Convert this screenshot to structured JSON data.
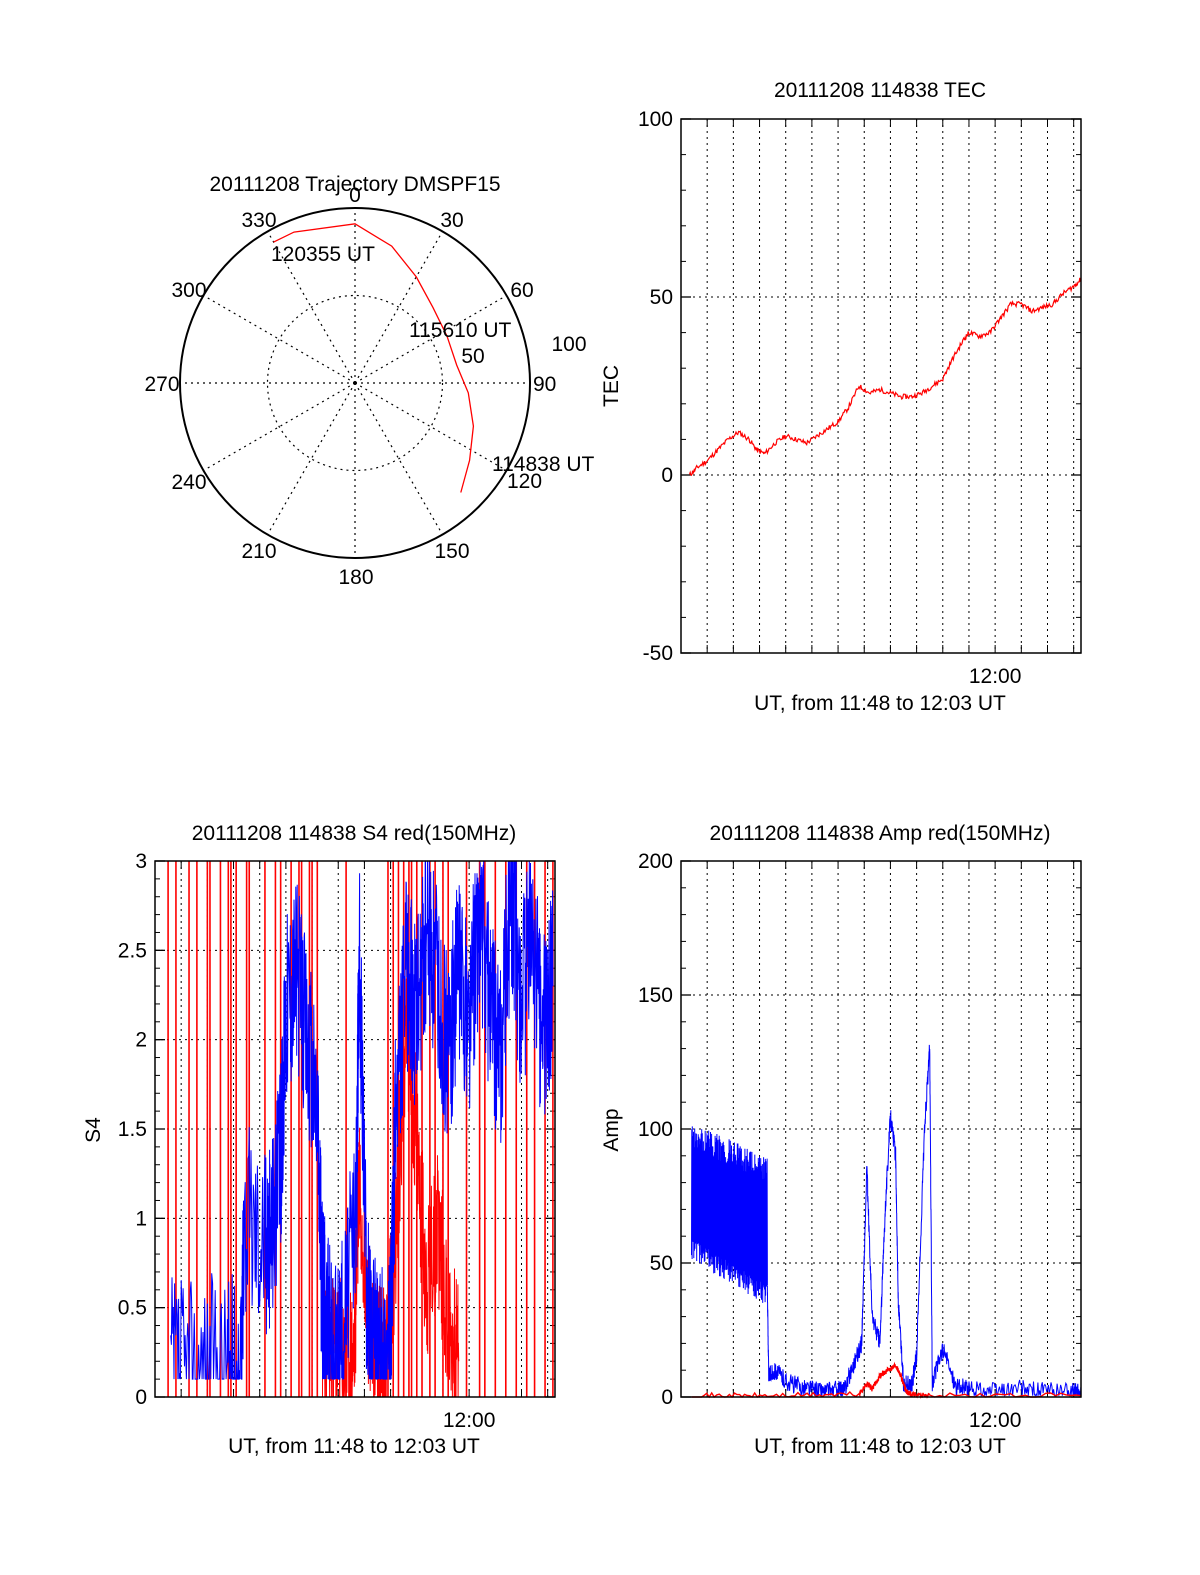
{
  "colors": {
    "background": "#ffffff",
    "axis": "#000000",
    "grid": "#000000",
    "red_series": "#ff0000",
    "blue_series": "#0000ff"
  },
  "chart_data": [
    {
      "id": "trajectory",
      "type": "polar",
      "title": "20111208 Trajectory DMSPF15",
      "azimuth_labels": [
        "0",
        "30",
        "60",
        "90",
        "120",
        "150",
        "180",
        "210",
        "240",
        "270",
        "300",
        "330"
      ],
      "radius_labels": [
        "50",
        "100"
      ],
      "radius_max": 100,
      "grid": true,
      "series": [
        {
          "color": "red",
          "points": [
            {
              "azimuth": 136,
              "zenith": 87
            },
            {
              "azimuth": 124,
              "zenith": 79
            },
            {
              "azimuth": 110,
              "zenith": 72
            },
            {
              "azimuth": 95,
              "zenith": 65
            },
            {
              "azimuth": 80,
              "zenith": 59
            },
            {
              "azimuth": 63,
              "zenith": 59
            },
            {
              "azimuth": 46,
              "zenith": 62
            },
            {
              "azimuth": 30,
              "zenith": 70
            },
            {
              "azimuth": 15,
              "zenith": 81
            },
            {
              "azimuth": 0,
              "zenith": 91
            },
            {
              "azimuth": 338,
              "zenith": 93
            },
            {
              "azimuth": 330,
              "zenith": 93
            }
          ]
        }
      ],
      "annotations": [
        {
          "text": "114838 UT"
        },
        {
          "text": "115610 UT"
        },
        {
          "text": "120355 UT"
        }
      ]
    },
    {
      "id": "tec",
      "type": "line",
      "title": "20111208 114838 TEC",
      "xlabel": "UT, from 11:48 to 12:03 UT",
      "ylabel": "TEC",
      "xlim_minutes": [
        0,
        15.28
      ],
      "ylim": [
        -50,
        100
      ],
      "x_tick_labels": [
        {
          "t": 12.0,
          "label": "12:00"
        }
      ],
      "y_ticks": [
        -50,
        0,
        50,
        100
      ],
      "grid": true,
      "series": [
        {
          "color": "red",
          "x": [
            0.33,
            0.6,
            1.0,
            1.4,
            1.8,
            2.2,
            2.6,
            2.9,
            3.2,
            3.6,
            4.0,
            4.4,
            4.8,
            5.2,
            5.6,
            6.0,
            6.4,
            6.8,
            7.2,
            7.6,
            8.0,
            8.4,
            8.8,
            9.2,
            9.6,
            10.0,
            10.4,
            10.8,
            11.0,
            11.4,
            11.8,
            12.2,
            12.6,
            13.0,
            13.4,
            13.8,
            14.2,
            14.6,
            15.0,
            15.28
          ],
          "y": [
            0,
            2,
            4,
            7,
            10,
            12,
            10,
            7,
            6,
            9,
            11,
            10,
            9,
            11,
            13,
            15,
            19,
            25,
            23,
            24,
            23,
            22,
            22,
            23,
            25,
            27,
            33,
            38,
            40,
            39,
            40,
            44,
            48,
            48,
            46,
            47,
            48,
            51,
            53,
            55
          ]
        }
      ]
    },
    {
      "id": "s4",
      "type": "line",
      "title": "20111208 114838 S4 red(150MHz)",
      "xlabel": "UT, from 11:48 to 12:03 UT",
      "ylabel": "S4",
      "xlim_minutes": [
        0,
        15.28
      ],
      "ylim": [
        0,
        3
      ],
      "x_tick_labels": [
        {
          "t": 12.0,
          "label": "12:00"
        }
      ],
      "y_ticks": [
        0,
        0.5,
        1,
        1.5,
        2,
        2.5,
        3
      ],
      "y_tick_labels": [
        "0",
        "0.5",
        "1",
        "1.5",
        "2",
        "2.5",
        "3"
      ],
      "grid": true,
      "series": [
        {
          "color": "blue",
          "x": [
            0.6,
            1.5,
            2.7,
            3.3,
            3.4,
            4.2,
            4.4,
            4.8,
            5.0,
            5.4,
            5.8,
            6.2,
            6.4,
            6.5,
            6.8,
            7.2,
            7.7,
            7.8,
            8.1,
            8.4,
            8.7,
            9.0,
            9.2,
            9.6,
            10.0,
            10.4,
            10.8,
            11.2,
            11.6,
            12.0,
            12.4,
            12.8,
            13.2,
            13.6,
            14.0,
            14.4,
            14.8,
            15.2
          ],
          "y": [
            0.14,
            0.14,
            0.15,
            0.16,
            1.0,
            0.9,
            0.9,
            1.3,
            2.2,
            2.4,
            2.0,
            1.6,
            0.5,
            0.55,
            0.2,
            0.4,
            1.1,
            2.6,
            0.5,
            0.25,
            0.2,
            0.3,
            1.6,
            2.4,
            2.1,
            2.6,
            2.3,
            1.9,
            2.4,
            2.1,
            2.7,
            2.2,
            1.9,
            2.8,
            2.2,
            2.6,
            2.0,
            2.3
          ]
        },
        {
          "color": "red",
          "x": [
            6.4,
            6.8,
            7.2,
            7.6,
            7.8,
            8.2,
            8.5,
            8.8,
            9.2,
            9.6,
            10.0,
            10.4,
            10.8,
            11.2,
            11.6
          ],
          "y": [
            0.3,
            0.25,
            0.22,
            0.2,
            1.3,
            0.4,
            0.22,
            0.18,
            0.9,
            2.2,
            1.4,
            0.6,
            1.0,
            0.4,
            0.2
          ]
        }
      ],
      "red_spike_times": [
        0.5,
        0.8,
        1.3,
        1.6,
        2.0,
        2.1,
        2.5,
        2.8,
        2.9,
        3.1,
        3.5,
        3.6,
        4.2,
        4.6,
        4.8,
        5.2,
        5.5,
        5.6,
        5.9,
        6.0,
        6.2,
        7.3,
        8.9,
        9.1,
        9.3,
        9.5,
        9.7,
        9.8,
        10.0,
        10.2,
        10.5,
        10.7,
        11.0,
        11.2,
        11.9,
        12.4,
        12.6,
        13.0,
        13.4,
        13.8,
        14.2,
        14.5,
        14.9,
        15.2
      ]
    },
    {
      "id": "amp",
      "type": "line",
      "title": "20111208 114838 Amp red(150MHz)",
      "xlabel": "UT, from 11:48 to 12:03 UT",
      "ylabel": "Amp",
      "xlim_minutes": [
        0,
        15.28
      ],
      "ylim": [
        0,
        200
      ],
      "x_tick_labels": [
        {
          "t": 12.0,
          "label": "12:00"
        }
      ],
      "y_ticks": [
        0,
        50,
        100,
        150,
        200
      ],
      "grid": true,
      "blue_band": {
        "x_start": 0.4,
        "x_end": 3.3,
        "low_start": 55,
        "low_end": 38,
        "high_start": 98,
        "high_end": 85
      },
      "series": [
        {
          "color": "blue",
          "x": [
            3.3,
            3.35,
            3.6,
            4.0,
            4.5,
            5.0,
            5.5,
            6.0,
            6.2,
            6.5,
            6.9,
            7.1,
            7.3,
            7.6,
            7.8,
            8.0,
            8.2,
            8.3,
            8.5,
            8.8,
            9.0,
            9.3,
            9.5,
            9.6,
            10.0,
            10.5,
            11.0,
            12.0,
            13.0,
            14.0,
            15.0,
            15.28
          ],
          "y": [
            40,
            8,
            10,
            6,
            4,
            3,
            2,
            3,
            2,
            10,
            20,
            85,
            30,
            20,
            70,
            105,
            90,
            35,
            5,
            4,
            15,
            100,
            130,
            5,
            18,
            4,
            3,
            2,
            3,
            2,
            2,
            2
          ]
        },
        {
          "color": "red",
          "x": [
            0.4,
            3.3,
            6.8,
            7.1,
            7.3,
            7.6,
            7.9,
            8.2,
            8.4,
            8.6,
            8.8,
            9.5,
            15.28
          ],
          "y": [
            0.5,
            0.5,
            1,
            5,
            3,
            8,
            10,
            12,
            8,
            2,
            1,
            0.5,
            0.5
          ]
        }
      ]
    }
  ]
}
